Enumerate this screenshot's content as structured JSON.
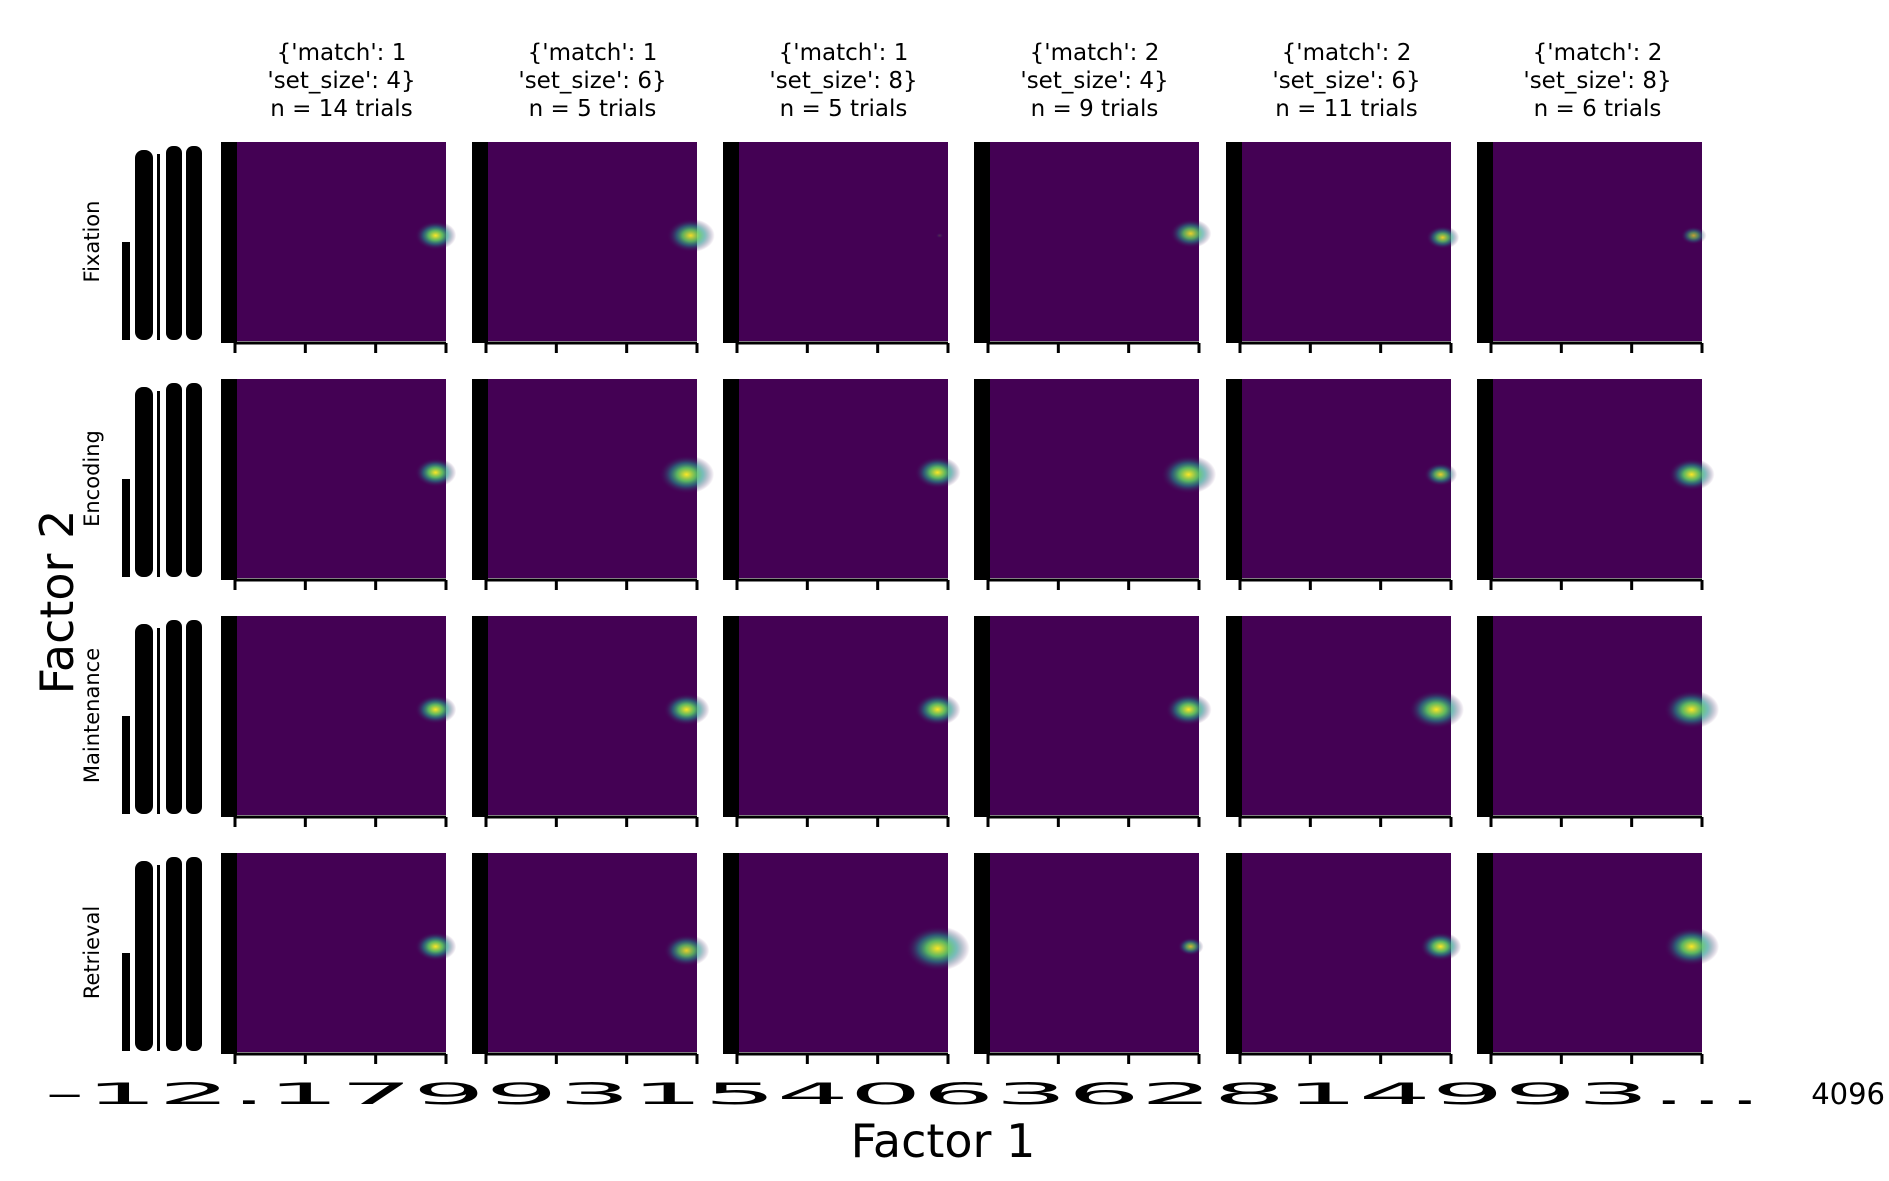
{
  "chart_data": {
    "type": "heatmap",
    "title": "",
    "xlabel": "Factor 1",
    "ylabel": "Factor 2",
    "colormap": "viridis",
    "colors": {
      "background": "#440154",
      "peak": "#fde725",
      "mid": "#21918c",
      "axis": "#000000"
    },
    "x_tick_text_visible": "-12.1799315406362814993…",
    "x_tick_text_tail": "4096",
    "conditions": [
      {
        "line1": "{'match': 1",
        "line2": "'set_size': 4}",
        "line3": "n = 14 trials"
      },
      {
        "line1": "{'match': 1",
        "line2": "'set_size': 6}",
        "line3": "n = 5 trials"
      },
      {
        "line1": "{'match': 1",
        "line2": "'set_size': 8}",
        "line3": "n = 5 trials"
      },
      {
        "line1": "{'match': 2",
        "line2": "'set_size': 4}",
        "line3": "n = 9 trials"
      },
      {
        "line1": "{'match': 2",
        "line2": "'set_size': 6}",
        "line3": "n = 11 trials"
      },
      {
        "line1": "{'match': 2",
        "line2": "'set_size': 8}",
        "line3": "n = 6 trials"
      }
    ],
    "phases": [
      "Fixation",
      "Encoding",
      "Maintenance",
      "Retrieval"
    ],
    "hotspots": [
      [
        {
          "fx": 0.95,
          "fy": 0.47,
          "strength": 1.0,
          "spread": 0.045
        },
        {
          "fx": 0.97,
          "fy": 0.47,
          "strength": 0.95,
          "spread": 0.055
        },
        {
          "fx": 0.96,
          "fy": 0.47,
          "strength": 0.15,
          "spread": 0.02
        },
        {
          "fx": 0.96,
          "fy": 0.46,
          "strength": 0.9,
          "spread": 0.05
        },
        {
          "fx": 0.96,
          "fy": 0.48,
          "strength": 0.9,
          "spread": 0.04
        },
        {
          "fx": 0.96,
          "fy": 0.47,
          "strength": 0.7,
          "spread": 0.04
        }
      ],
      [
        {
          "fx": 0.95,
          "fy": 0.47,
          "strength": 1.0,
          "spread": 0.045
        },
        {
          "fx": 0.95,
          "fy": 0.48,
          "strength": 1.0,
          "spread": 0.06
        },
        {
          "fx": 0.95,
          "fy": 0.47,
          "strength": 1.0,
          "spread": 0.05
        },
        {
          "fx": 0.95,
          "fy": 0.48,
          "strength": 1.0,
          "spread": 0.06
        },
        {
          "fx": 0.95,
          "fy": 0.48,
          "strength": 0.9,
          "spread": 0.04
        },
        {
          "fx": 0.95,
          "fy": 0.48,
          "strength": 1.0,
          "spread": 0.05
        }
      ],
      [
        {
          "fx": 0.95,
          "fy": 0.47,
          "strength": 1.0,
          "spread": 0.045
        },
        {
          "fx": 0.95,
          "fy": 0.47,
          "strength": 1.0,
          "spread": 0.05
        },
        {
          "fx": 0.95,
          "fy": 0.47,
          "strength": 1.0,
          "spread": 0.05
        },
        {
          "fx": 0.95,
          "fy": 0.47,
          "strength": 1.0,
          "spread": 0.05
        },
        {
          "fx": 0.93,
          "fy": 0.47,
          "strength": 1.0,
          "spread": 0.06
        },
        {
          "fx": 0.95,
          "fy": 0.47,
          "strength": 1.0,
          "spread": 0.06
        }
      ],
      [
        {
          "fx": 0.95,
          "fy": 0.47,
          "strength": 1.0,
          "spread": 0.045
        },
        {
          "fx": 0.95,
          "fy": 0.49,
          "strength": 0.9,
          "spread": 0.055
        },
        {
          "fx": 0.95,
          "fy": 0.48,
          "strength": 1.0,
          "spread": 0.07
        },
        {
          "fx": 0.96,
          "fy": 0.47,
          "strength": 0.8,
          "spread": 0.035
        },
        {
          "fx": 0.95,
          "fy": 0.47,
          "strength": 1.0,
          "spread": 0.045
        },
        {
          "fx": 0.95,
          "fy": 0.47,
          "strength": 1.0,
          "spread": 0.06
        }
      ]
    ]
  }
}
